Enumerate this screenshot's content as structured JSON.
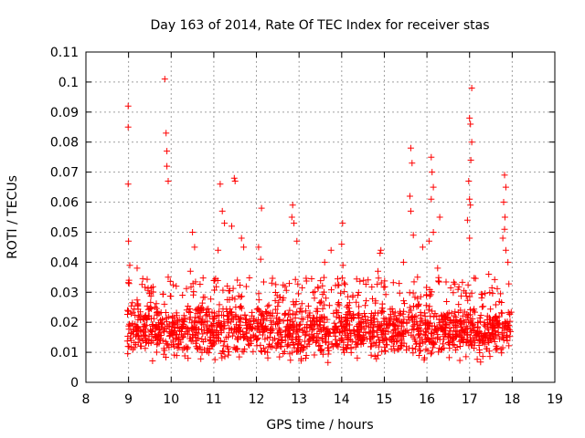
{
  "chart_data": {
    "type": "scatter",
    "title": "Day 163 of 2014, Rate Of TEC Index for receiver stas",
    "xlabel": "GPS time / hours",
    "ylabel": "ROTI / TECUs",
    "xlim": [
      8,
      19
    ],
    "ylim": [
      0,
      0.11
    ],
    "xticks": [
      "8",
      "9",
      "10",
      "11",
      "12",
      "13",
      "14",
      "15",
      "16",
      "17",
      "18",
      "19"
    ],
    "yticks": [
      "0",
      "0.01",
      "0.02",
      "0.03",
      "0.04",
      "0.05",
      "0.06",
      "0.07",
      "0.08",
      "0.09",
      "0.1",
      "0.11"
    ],
    "grid": true,
    "marker": "+",
    "color": "#ff0000",
    "series": [
      {
        "name": "ROTI",
        "x_range": [
          8.97,
          17.98
        ],
        "typical_range": [
          0.005,
          0.035
        ],
        "peaks": [
          {
            "x": 8.99,
            "y": 0.092
          },
          {
            "x": 8.99,
            "y": 0.085
          },
          {
            "x": 8.99,
            "y": 0.066
          },
          {
            "x": 9.0,
            "y": 0.047
          },
          {
            "x": 9.03,
            "y": 0.039
          },
          {
            "x": 9.2,
            "y": 0.038
          },
          {
            "x": 9.85,
            "y": 0.101
          },
          {
            "x": 9.88,
            "y": 0.083
          },
          {
            "x": 9.9,
            "y": 0.077
          },
          {
            "x": 9.9,
            "y": 0.072
          },
          {
            "x": 9.93,
            "y": 0.067
          },
          {
            "x": 9.93,
            "y": 0.035
          },
          {
            "x": 10.5,
            "y": 0.05
          },
          {
            "x": 10.55,
            "y": 0.045
          },
          {
            "x": 10.45,
            "y": 0.037
          },
          {
            "x": 11.15,
            "y": 0.066
          },
          {
            "x": 11.2,
            "y": 0.057
          },
          {
            "x": 11.25,
            "y": 0.053
          },
          {
            "x": 11.48,
            "y": 0.068
          },
          {
            "x": 11.5,
            "y": 0.067
          },
          {
            "x": 11.42,
            "y": 0.052
          },
          {
            "x": 11.65,
            "y": 0.048
          },
          {
            "x": 11.7,
            "y": 0.045
          },
          {
            "x": 11.1,
            "y": 0.044
          },
          {
            "x": 12.12,
            "y": 0.058
          },
          {
            "x": 12.05,
            "y": 0.045
          },
          {
            "x": 12.1,
            "y": 0.041
          },
          {
            "x": 12.85,
            "y": 0.059
          },
          {
            "x": 12.83,
            "y": 0.055
          },
          {
            "x": 12.88,
            "y": 0.053
          },
          {
            "x": 12.95,
            "y": 0.047
          },
          {
            "x": 13.6,
            "y": 0.04
          },
          {
            "x": 13.75,
            "y": 0.044
          },
          {
            "x": 14.02,
            "y": 0.053
          },
          {
            "x": 14.0,
            "y": 0.046
          },
          {
            "x": 14.03,
            "y": 0.039
          },
          {
            "x": 14.92,
            "y": 0.044
          },
          {
            "x": 14.9,
            "y": 0.043
          },
          {
            "x": 14.85,
            "y": 0.037
          },
          {
            "x": 15.62,
            "y": 0.078
          },
          {
            "x": 15.65,
            "y": 0.073
          },
          {
            "x": 15.6,
            "y": 0.062
          },
          {
            "x": 15.62,
            "y": 0.057
          },
          {
            "x": 15.68,
            "y": 0.049
          },
          {
            "x": 15.45,
            "y": 0.04
          },
          {
            "x": 15.9,
            "y": 0.045
          },
          {
            "x": 15.78,
            "y": 0.035
          },
          {
            "x": 16.1,
            "y": 0.075
          },
          {
            "x": 16.12,
            "y": 0.07
          },
          {
            "x": 16.15,
            "y": 0.065
          },
          {
            "x": 16.1,
            "y": 0.061
          },
          {
            "x": 16.15,
            "y": 0.05
          },
          {
            "x": 16.05,
            "y": 0.047
          },
          {
            "x": 16.3,
            "y": 0.055
          },
          {
            "x": 16.25,
            "y": 0.038
          },
          {
            "x": 17.05,
            "y": 0.098
          },
          {
            "x": 17.0,
            "y": 0.088
          },
          {
            "x": 17.02,
            "y": 0.086
          },
          {
            "x": 17.05,
            "y": 0.08
          },
          {
            "x": 17.03,
            "y": 0.074
          },
          {
            "x": 16.98,
            "y": 0.067
          },
          {
            "x": 17.0,
            "y": 0.061
          },
          {
            "x": 17.02,
            "y": 0.059
          },
          {
            "x": 16.95,
            "y": 0.054
          },
          {
            "x": 17.0,
            "y": 0.048
          },
          {
            "x": 17.45,
            "y": 0.036
          },
          {
            "x": 17.82,
            "y": 0.069
          },
          {
            "x": 17.85,
            "y": 0.065
          },
          {
            "x": 17.8,
            "y": 0.06
          },
          {
            "x": 17.83,
            "y": 0.055
          },
          {
            "x": 17.82,
            "y": 0.051
          },
          {
            "x": 17.78,
            "y": 0.048
          },
          {
            "x": 17.85,
            "y": 0.044
          },
          {
            "x": 17.9,
            "y": 0.04
          }
        ]
      }
    ]
  }
}
